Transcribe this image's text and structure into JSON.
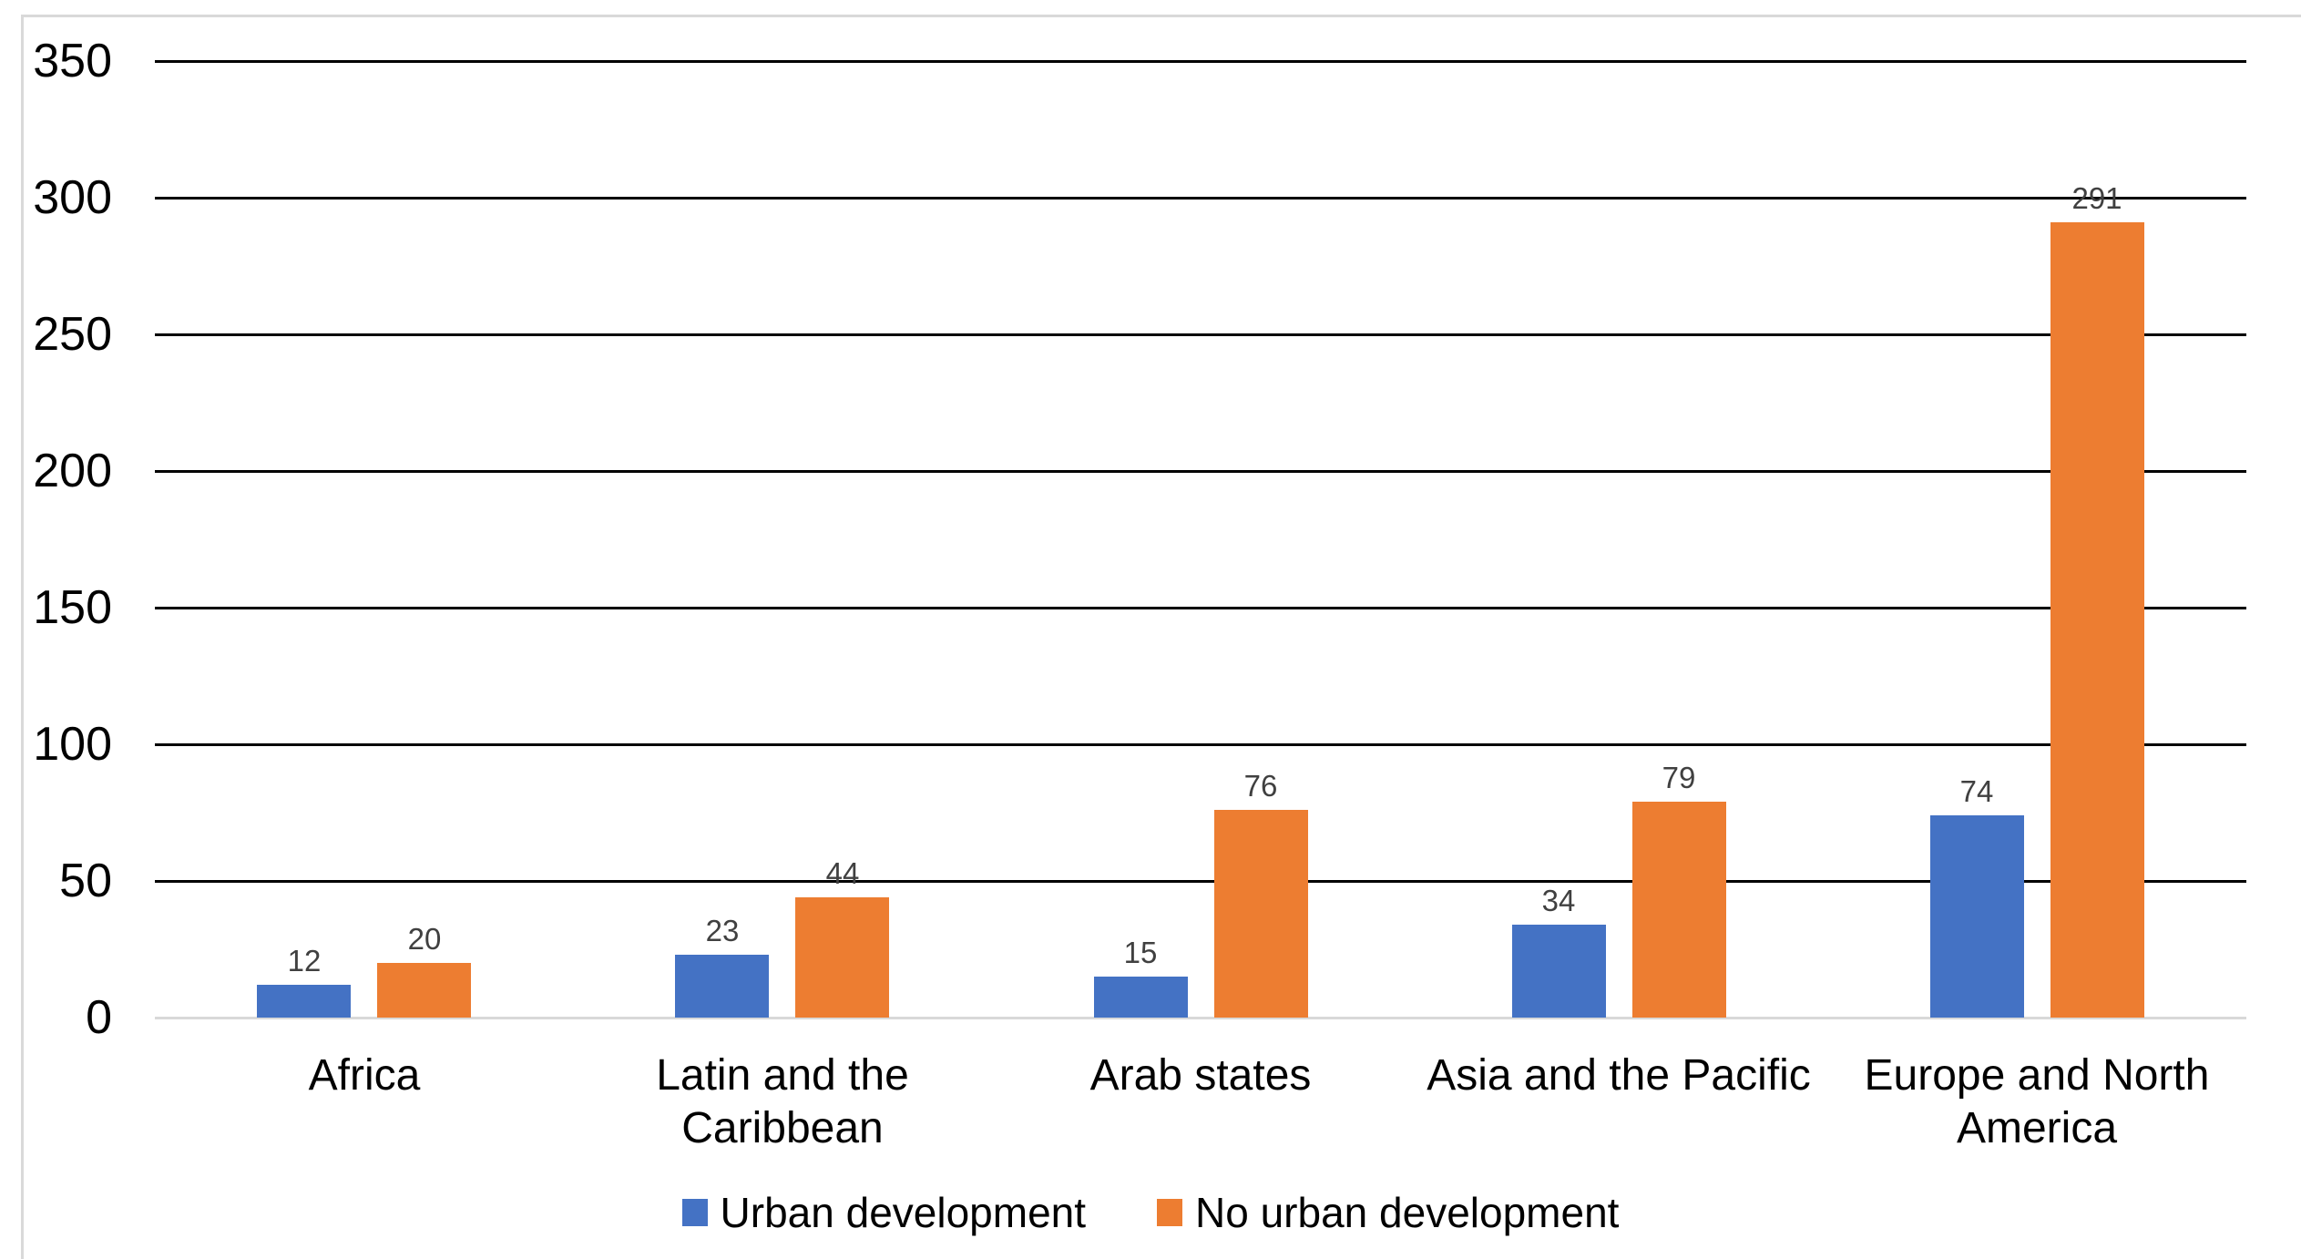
{
  "chart_data": {
    "type": "bar",
    "categories": [
      "Africa",
      "Latin and the\nCaribbean",
      "Arab states",
      "Asia and the Pacific",
      "Europe and North\nAmerica"
    ],
    "series": [
      {
        "name": "Urban development",
        "color": "#4472C4",
        "values": [
          12,
          23,
          15,
          34,
          74
        ]
      },
      {
        "name": "No urban development",
        "color": "#ED7D31",
        "values": [
          20,
          44,
          76,
          79,
          291
        ]
      }
    ],
    "title": "",
    "xlabel": "",
    "ylabel": "",
    "ylim": [
      0,
      350
    ],
    "y_ticks": [
      0,
      50,
      100,
      150,
      200,
      250,
      300,
      350
    ],
    "grid": true,
    "legend_position": "bottom",
    "data_labels": true
  },
  "style": {
    "gridline_color": "#000000",
    "axis_line_color": "#D9D9D9",
    "chart_border_color": "#D9D9D9",
    "data_label_color": "#404040",
    "text_color": "#000000",
    "background": "#FFFFFF"
  }
}
